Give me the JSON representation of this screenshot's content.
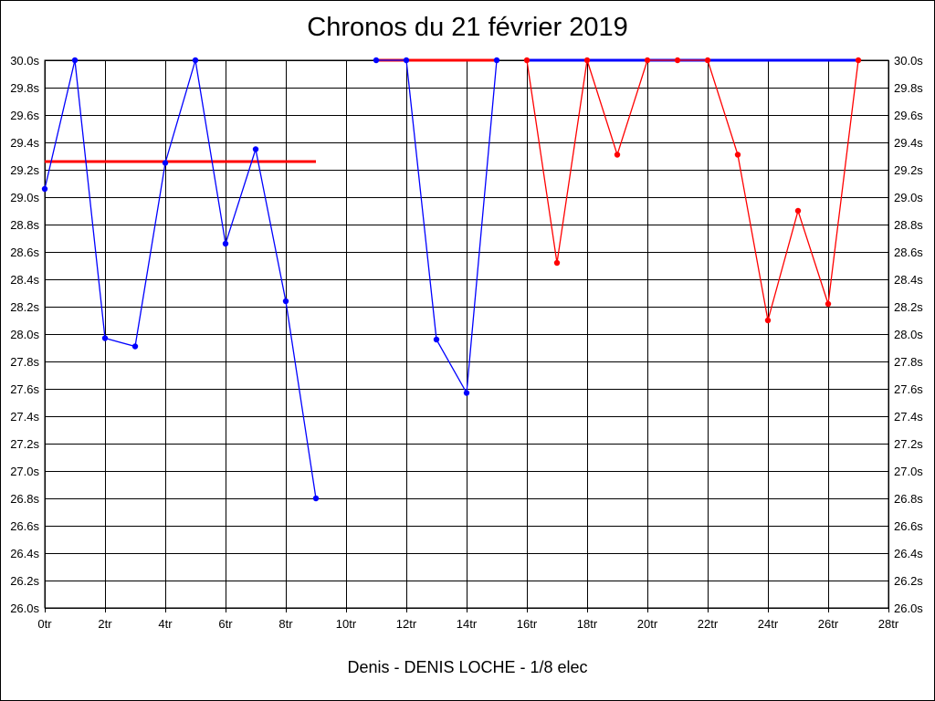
{
  "chart_data": {
    "type": "line",
    "title": "Chronos du 21 février 2019",
    "footer": "Denis - DENIS LOCHE - 1/8 elec",
    "grid": true,
    "x_ticks": [
      "0tr",
      "2tr",
      "4tr",
      "6tr",
      "8tr",
      "10tr",
      "12tr",
      "14tr",
      "16tr",
      "18tr",
      "20tr",
      "22tr",
      "24tr",
      "26tr",
      "28tr"
    ],
    "x_tick_values": [
      0,
      2,
      4,
      6,
      8,
      10,
      12,
      14,
      16,
      18,
      20,
      22,
      24,
      26,
      28
    ],
    "y_ticks": [
      "26.0s",
      "26.2s",
      "26.4s",
      "26.6s",
      "26.8s",
      "27.0s",
      "27.2s",
      "27.4s",
      "27.6s",
      "27.8s",
      "28.0s",
      "28.2s",
      "28.4s",
      "28.6s",
      "28.8s",
      "29.0s",
      "29.2s",
      "29.4s",
      "29.6s",
      "29.8s",
      "30.0s"
    ],
    "y_tick_values": [
      26.0,
      26.2,
      26.4,
      26.6,
      26.8,
      27.0,
      27.2,
      27.4,
      27.6,
      27.8,
      28.0,
      28.2,
      28.4,
      28.6,
      28.8,
      29.0,
      29.2,
      29.4,
      29.6,
      29.8,
      30.0
    ],
    "xlim": [
      0,
      28
    ],
    "ylim": [
      26.0,
      30.0
    ],
    "series": [
      {
        "color": "#0000ff",
        "points": [
          [
            0,
            29.06
          ],
          [
            1,
            30.0
          ],
          [
            2,
            27.97
          ],
          [
            3,
            27.91
          ],
          [
            4,
            29.25
          ],
          [
            5,
            30.0
          ],
          [
            6,
            28.66
          ],
          [
            7,
            29.35
          ],
          [
            8,
            28.24
          ],
          [
            9,
            26.8
          ]
        ]
      },
      {
        "color": "#0000ff",
        "points": [
          [
            11,
            30.0
          ],
          [
            12,
            30.0
          ],
          [
            13,
            27.96
          ],
          [
            14,
            27.57
          ],
          [
            15,
            30.0
          ]
        ]
      },
      {
        "color": "#ff0000",
        "points": [
          [
            16,
            30.0
          ],
          [
            17,
            28.52
          ],
          [
            18,
            30.0
          ],
          [
            19,
            29.31
          ],
          [
            20,
            30.0
          ],
          [
            21,
            30.0
          ],
          [
            22,
            30.0
          ],
          [
            23,
            29.31
          ],
          [
            24,
            28.1
          ],
          [
            25,
            28.9
          ],
          [
            26,
            28.22
          ],
          [
            27,
            30.0
          ]
        ]
      }
    ],
    "reference_lines": [
      {
        "color": "#ff0000",
        "x1": 0,
        "x2": 9,
        "y": 29.26
      },
      {
        "color": "#ff0000",
        "x1": 11,
        "x2": 15,
        "y": 30.0
      },
      {
        "color": "#0000ff",
        "x1": 16,
        "x2": 27,
        "y": 30.0
      }
    ]
  }
}
